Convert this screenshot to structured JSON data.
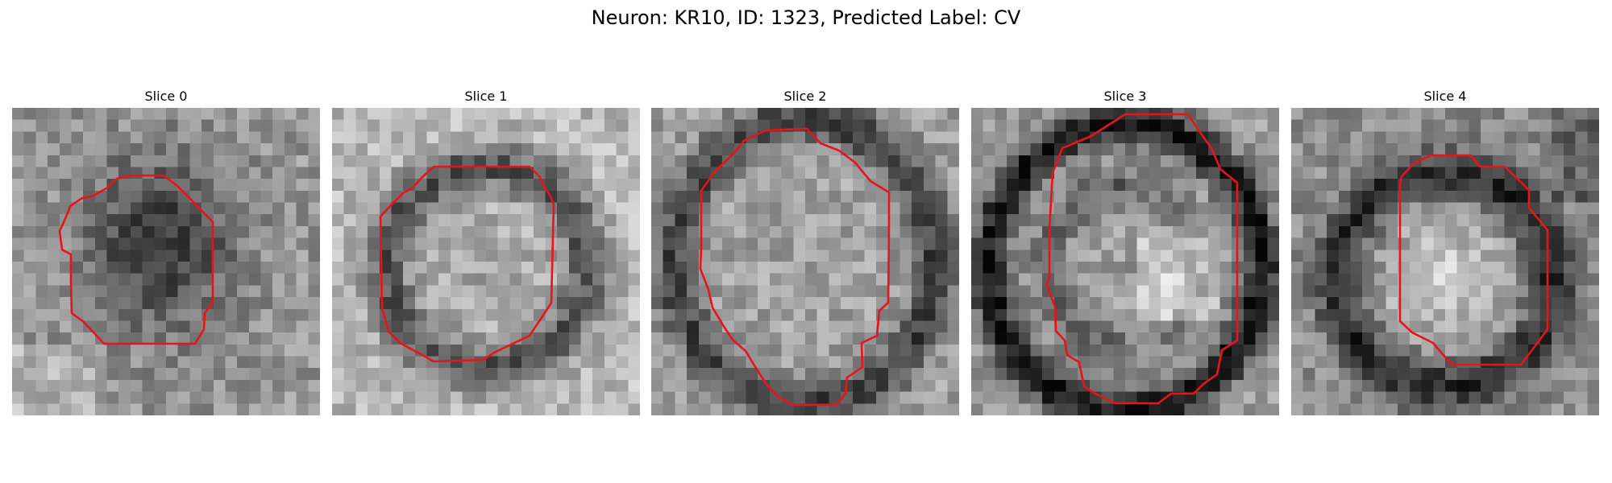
{
  "figure": {
    "title": "Neuron: KR10, ID: 1323, Predicted Label: CV"
  },
  "colors": {
    "roi_outline": "#e8141b",
    "background": "#ffffff",
    "colormap": "grayscale"
  },
  "panels": [
    {
      "title": "Slice 0",
      "pattern": "dark-blob"
    },
    {
      "title": "Slice 1",
      "pattern": "dark-ring-light-bg"
    },
    {
      "title": "Slice 2",
      "pattern": "dark-ring-mid-bg"
    },
    {
      "title": "Slice 3",
      "pattern": "strong-ring-bright-core"
    },
    {
      "title": "Slice 4",
      "pattern": "dark-ring-bright-center"
    }
  ]
}
